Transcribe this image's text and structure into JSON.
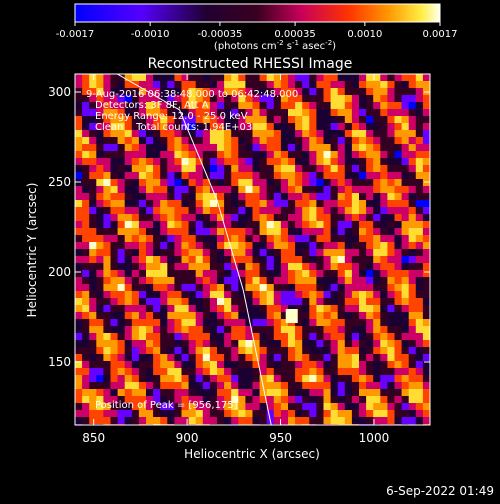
{
  "colorbar": {
    "tick_labels": [
      "-0.0017",
      "-0.0010",
      "-0.00035",
      "0.00035",
      "0.0010",
      "0.0017"
    ],
    "tick_values": [
      -0.0017,
      -0.001,
      -0.00035,
      0.00035,
      0.001,
      0.0017
    ],
    "range": [
      -0.0017,
      0.0017
    ],
    "unit_parts": [
      "(photons cm",
      "-2",
      " s",
      "-1",
      " asec",
      "-2",
      ")"
    ]
  },
  "chart_data": {
    "type": "heatmap",
    "title": "Reconstructed RHESSI Image",
    "xlabel": "Heliocentric X (arcsec)",
    "ylabel": "Heliocentric Y (arcsec)",
    "xlim": [
      840,
      1030
    ],
    "ylim": [
      115,
      310
    ],
    "x_ticks": [
      850,
      900,
      950,
      1000
    ],
    "y_ticks": [
      150,
      200,
      250,
      300
    ],
    "grid": false,
    "colormap": [
      "#0000ff",
      "#6600ff",
      "#1a0033",
      "#330022",
      "#cc0066",
      "#ff4400",
      "#ff9900",
      "#ffdd33",
      "#ffffcc"
    ],
    "annotations": [
      "9-Aug-2016 06:38:48.000 to 06:42:48.000",
      "Detectors: 3F 8F, Att A",
      "Energy Range: 12.0 - 25.0 keV",
      "Clean    Total counts: 1.94E+03"
    ],
    "peak_label": "Position of Peak = [956,175]",
    "peak": {
      "x": 956,
      "y": 175
    },
    "limb_points": [
      [
        836,
        326
      ],
      [
        896,
        290
      ],
      [
        916,
        240
      ],
      [
        930,
        190
      ],
      [
        938,
        150
      ],
      [
        945,
        115
      ]
    ]
  },
  "footer": {
    "date": "6-Sep-2022 01:49"
  }
}
